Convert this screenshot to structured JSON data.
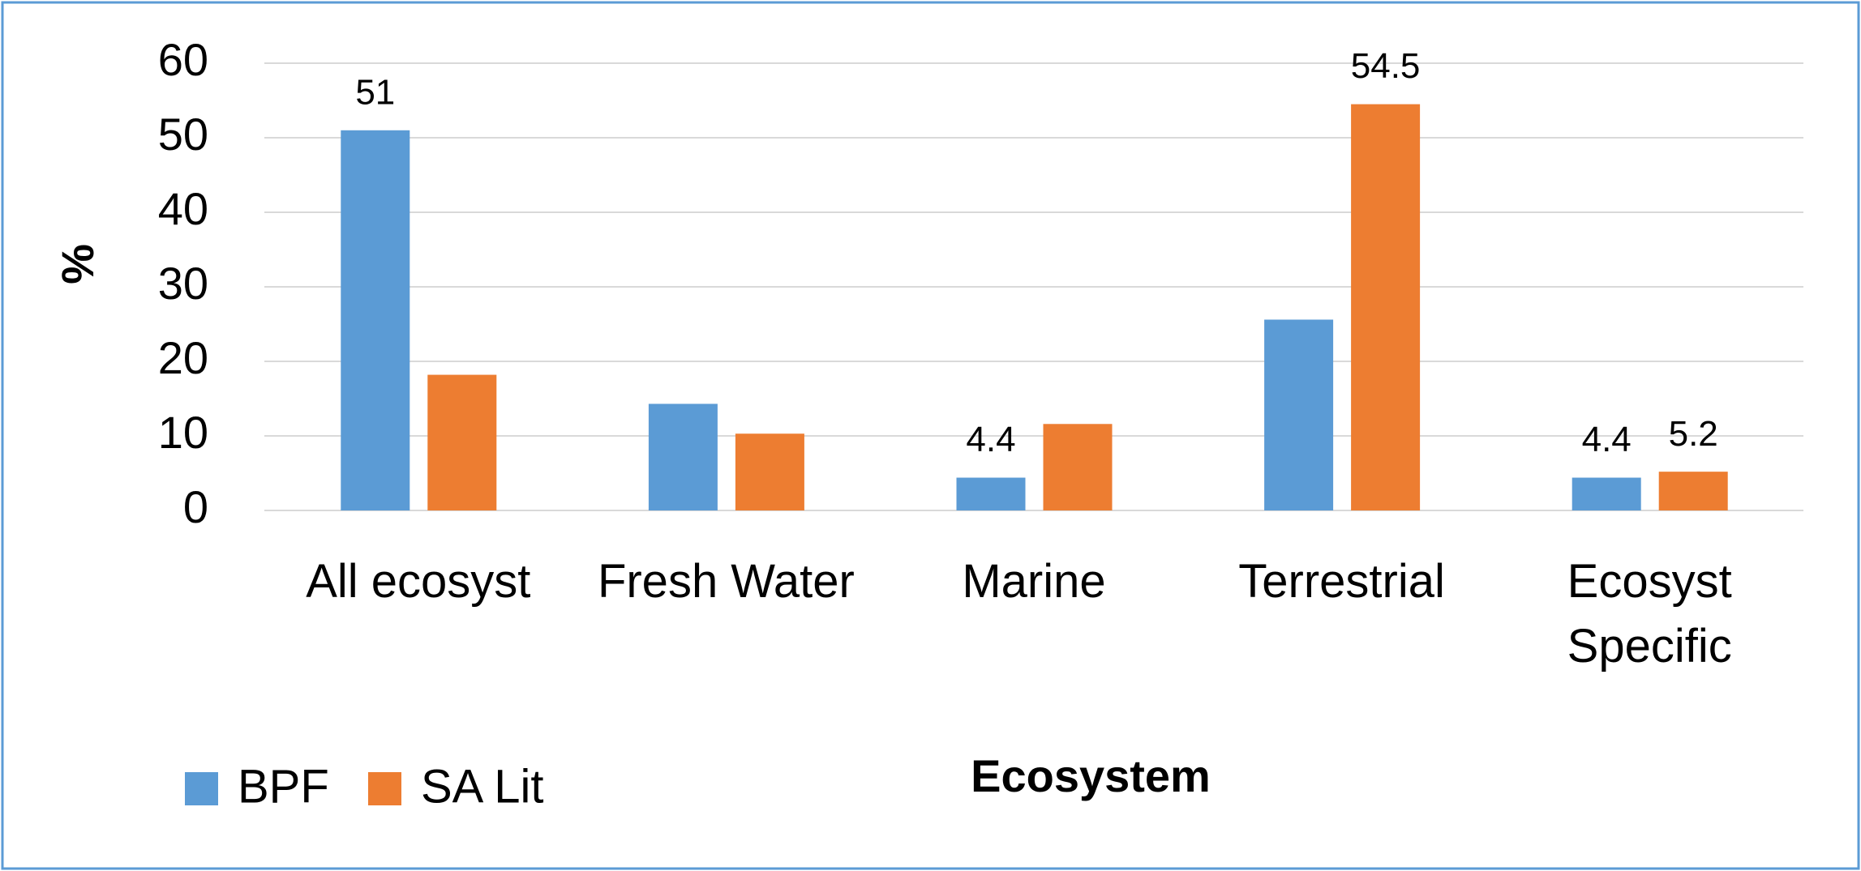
{
  "chart_data": {
    "type": "bar",
    "x_label": "Ecosystem",
    "y_label": "%",
    "categories": [
      "All ecosyst",
      "Fresh Water",
      "Marine",
      "Terrestrial",
      "Ecosyst Specific"
    ],
    "series": [
      {
        "name": "BPF",
        "color": "#5b9bd5",
        "values": [
          51,
          14.3,
          4.4,
          25.6,
          4.4
        ],
        "value_labels": [
          "51",
          null,
          "4.4",
          null,
          "4.4"
        ]
      },
      {
        "name": "SA Lit",
        "color": "#ed7d31",
        "values": [
          18.2,
          10.3,
          11.6,
          54.5,
          5.2
        ],
        "value_labels": [
          null,
          null,
          null,
          "54.5",
          "5.2"
        ]
      }
    ],
    "ylim": [
      0,
      60
    ],
    "yticks": [
      0,
      10,
      20,
      30,
      40,
      50,
      60
    ],
    "grid": true,
    "legend": "bottom-left"
  }
}
